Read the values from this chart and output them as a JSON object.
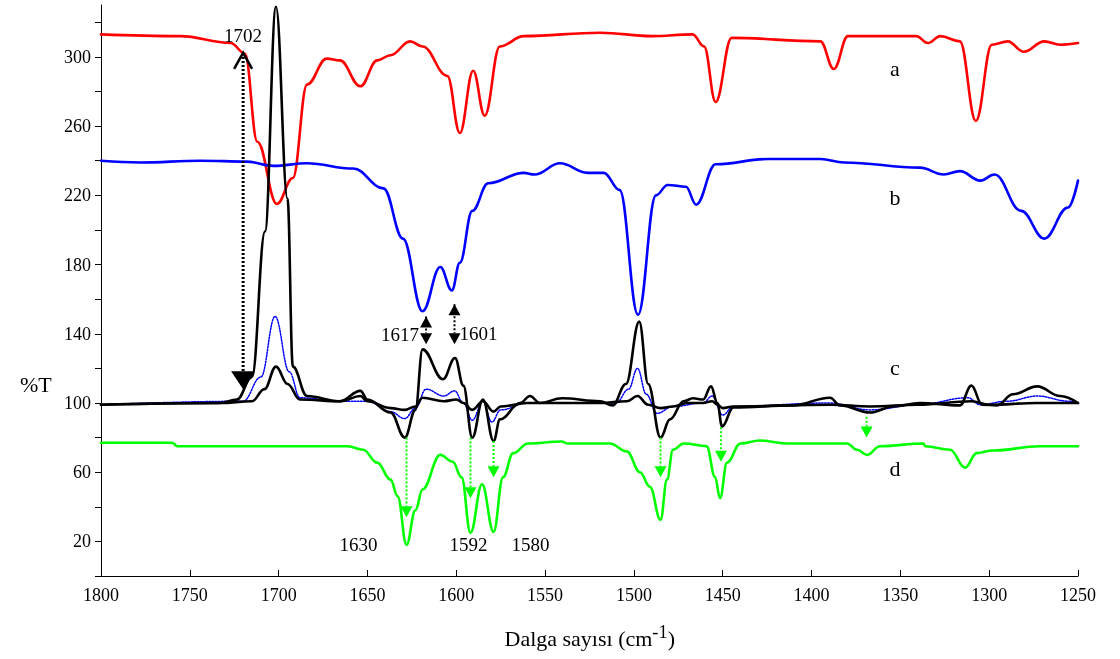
{
  "chart_data": {
    "type": "line",
    "xlabel": "Dalga sayısı (cm$^{-1}$)",
    "ylabel": "%T",
    "xlim": [
      1800,
      1250
    ],
    "xticks": [
      1800,
      1750,
      1700,
      1650,
      1600,
      1550,
      1500,
      1450,
      1400,
      1350,
      1300,
      1250
    ],
    "ylim": [
      0,
      330
    ],
    "yticks": [
      {
        "value": 0,
        "label": null
      },
      20,
      {
        "value": 40,
        "label": null
      },
      60,
      {
        "value": 80,
        "label": null
      },
      100,
      {
        "value": 120,
        "label": null
      },
      140,
      {
        "value": 160,
        "label": null
      },
      180,
      {
        "value": 200,
        "label": null
      },
      220,
      {
        "value": 240,
        "label": null
      },
      260,
      {
        "value": 280,
        "label": null
      },
      300,
      {
        "value": 320,
        "label": null
      }
    ],
    "grid": false,
    "marker": "none",
    "series": [
      {
        "name": "a",
        "color": "#ff0000",
        "x": [
          1800,
          1755.5,
          1727,
          1719,
          1712,
          1701,
          1692,
          1684,
          1673,
          1665.5,
          1654,
          1644.5,
          1637,
          1626,
          1619,
          1605,
          1598,
          1590.5,
          1584,
          1575.5,
          1562,
          1519,
          1490,
          1467,
          1460.5,
          1454,
          1445,
          1395,
          1387.5,
          1379.5,
          1341,
          1334.5,
          1327.5,
          1316.5,
          1307.5,
          1298.5,
          1289.5,
          1280.5,
          1269,
          1260,
          1250
        ],
        "values": [
          313,
          312,
          308,
          302,
          251,
          215,
          230,
          284,
          299,
          298,
          283,
          298,
          301,
          309,
          306,
          289,
          256,
          292,
          266,
          306,
          312,
          314,
          312,
          313,
          306,
          274,
          311,
          309,
          293,
          312,
          312,
          308,
          312,
          309,
          263,
          307,
          309,
          303,
          309,
          307,
          308
        ]
      },
      {
        "name": "b",
        "color": "#0000ff",
        "x": [
          1800,
          1778,
          1744,
          1718,
          1703,
          1684,
          1658,
          1641,
          1630,
          1619,
          1609,
          1602.5,
          1598,
          1591,
          1582,
          1562,
          1556,
          1541.6,
          1526,
          1517,
          1508,
          1497.7,
          1487.6,
          1481,
          1470.7,
          1465,
          1454,
          1424.5,
          1395,
          1381.7,
          1339,
          1325.5,
          1316.5,
          1305,
          1297,
          1282,
          1269,
          1255.6,
          1250
        ],
        "values": [
          240,
          239,
          240,
          239.5,
          237,
          238.5,
          235.5,
          224,
          195,
          153,
          178.6,
          165,
          181,
          211,
          227,
          233,
          232,
          238.5,
          233,
          233,
          223,
          151,
          220,
          226,
          225,
          214.6,
          238,
          241,
          241,
          239,
          236,
          232,
          234,
          228.5,
          232,
          211,
          195,
          213,
          228.5
        ]
      },
      {
        "color": "#0000ff",
        "line_style": "dotted",
        "x": [
          1800,
          1720,
          1710,
          1702,
          1694,
          1688,
          1665,
          1650,
          1637,
          1629,
          1623,
          1617,
          1607,
          1601,
          1596,
          1591,
          1585,
          1580,
          1575,
          1560,
          1510,
          1503,
          1498,
          1493,
          1487,
          1478,
          1461,
          1456,
          1450,
          1444,
          1390,
          1367,
          1340,
          1312,
          1305,
          1290,
          1273,
          1255,
          1250
        ],
        "values": [
          99,
          101,
          115,
          150,
          118,
          103,
          101,
          101,
          95,
          91,
          97,
          108,
          104,
          107,
          100,
          90,
          101,
          89,
          96,
          100,
          100,
          108,
          120,
          105,
          94,
          98,
          100,
          104,
          93,
          98,
          100,
          96,
          99,
          103,
          99,
          101,
          104,
          101,
          100
        ]
      },
      {
        "color": "#000000",
        "x": [
          1800,
          1733,
          1715,
          1708,
          1701.5,
          1695,
          1688,
          1665,
          1654,
          1650,
          1637,
          1629,
          1623,
          1619,
          1607,
          1600,
          1596,
          1591,
          1585,
          1579,
          1575,
          1560,
          1519,
          1504,
          1498,
          1492,
          1485,
          1478,
          1470,
          1461,
          1456,
          1453,
          1450,
          1444,
          1389,
          1367,
          1340,
          1310,
          1300,
          1273,
          1250
        ],
        "values": [
          99,
          100,
          101,
          108,
          121,
          111,
          102,
          101,
          104,
          101,
          97,
          96,
          98,
          103,
          101,
          102,
          100,
          96,
          101,
          95,
          98,
          100,
          100,
          101,
          104,
          99,
          97,
          98,
          100,
          100,
          101,
          99,
          97,
          98,
          99,
          98,
          99,
          101,
          99,
          100,
          100
        ]
      },
      {
        "name": "c",
        "color": "#000000",
        "x": [
          1800,
          1733,
          1723.5,
          1715,
          1707.7,
          1701.5,
          1695,
          1692,
          1684,
          1665.5,
          1654,
          1650,
          1637,
          1629,
          1623,
          1619,
          1607.5,
          1600.7,
          1596,
          1591,
          1585,
          1579,
          1575.4,
          1564,
          1558.5,
          1553,
          1540.5,
          1519,
          1512,
          1504.5,
          1497,
          1492,
          1485,
          1479.7,
          1472,
          1466.7,
          1461,
          1456.6,
          1453,
          1450.4,
          1444,
          1410.5,
          1389.6,
          1384,
          1367,
          1354,
          1339,
          1316.5,
          1310,
          1304,
          1295.6,
          1286.6,
          1273,
          1260,
          1250
        ],
        "values": [
          99,
          100,
          102,
          115,
          199,
          329,
          218,
          121,
          104,
          101,
          107,
          102,
          94.5,
          80,
          96,
          131,
          113.7,
          126,
          110,
          80,
          102,
          78,
          90.5,
          100,
          104,
          100,
          102.7,
          101,
          98.6,
          111,
          147,
          111,
          80,
          90.5,
          101,
          102.7,
          102,
          109.6,
          100,
          86.4,
          97.4,
          98.6,
          103,
          98.6,
          94.5,
          98,
          100,
          98.6,
          110,
          99,
          98.6,
          105,
          109.6,
          104,
          100
        ]
      },
      {
        "name": "d",
        "color": "#00ff00",
        "x": [
          1800,
          1760,
          1757,
          1661,
          1652.5,
          1644.5,
          1637,
          1633,
          1628,
          1623,
          1619,
          1609,
          1602,
          1597,
          1592,
          1585.5,
          1579,
          1573.7,
          1568,
          1559.6,
          1540.5,
          1537.7,
          1513.5,
          1504,
          1496.6,
          1491,
          1485,
          1481.4,
          1478,
          1472,
          1459,
          1454.4,
          1451.5,
          1447.6,
          1440,
          1429,
          1414,
          1380,
          1374.4,
          1368.8,
          1361.5,
          1337,
          1336,
          1322,
          1313.6,
          1307,
          1298,
          1271.4,
          1250
        ],
        "values": [
          77,
          77,
          75,
          75,
          73,
          65.5,
          55.7,
          46,
          18,
          38,
          50,
          70,
          66,
          57,
          25,
          53,
          25.5,
          57,
          71,
          76.6,
          77.7,
          76.6,
          76.6,
          72,
          60,
          51.6,
          32.5,
          55.7,
          73,
          76.6,
          75,
          57.4,
          45,
          65.5,
          76.6,
          78.3,
          76.6,
          76.6,
          73,
          70,
          75,
          76.6,
          75,
          73,
          62.6,
          71,
          72.5,
          75,
          75
        ]
      }
    ],
    "annotations": [
      {
        "text": "1702",
        "x": 1702,
        "y": 329
      },
      {
        "text": "1617",
        "x": 1617,
        "y": 131
      },
      {
        "text": "1601",
        "x": 1601,
        "y": 126
      },
      {
        "text": "1630",
        "x": 1628,
        "y": 18
      },
      {
        "text": "1592",
        "x": 1592,
        "y": 25
      },
      {
        "text": "1580",
        "x": 1579,
        "y": 25.5
      }
    ]
  }
}
